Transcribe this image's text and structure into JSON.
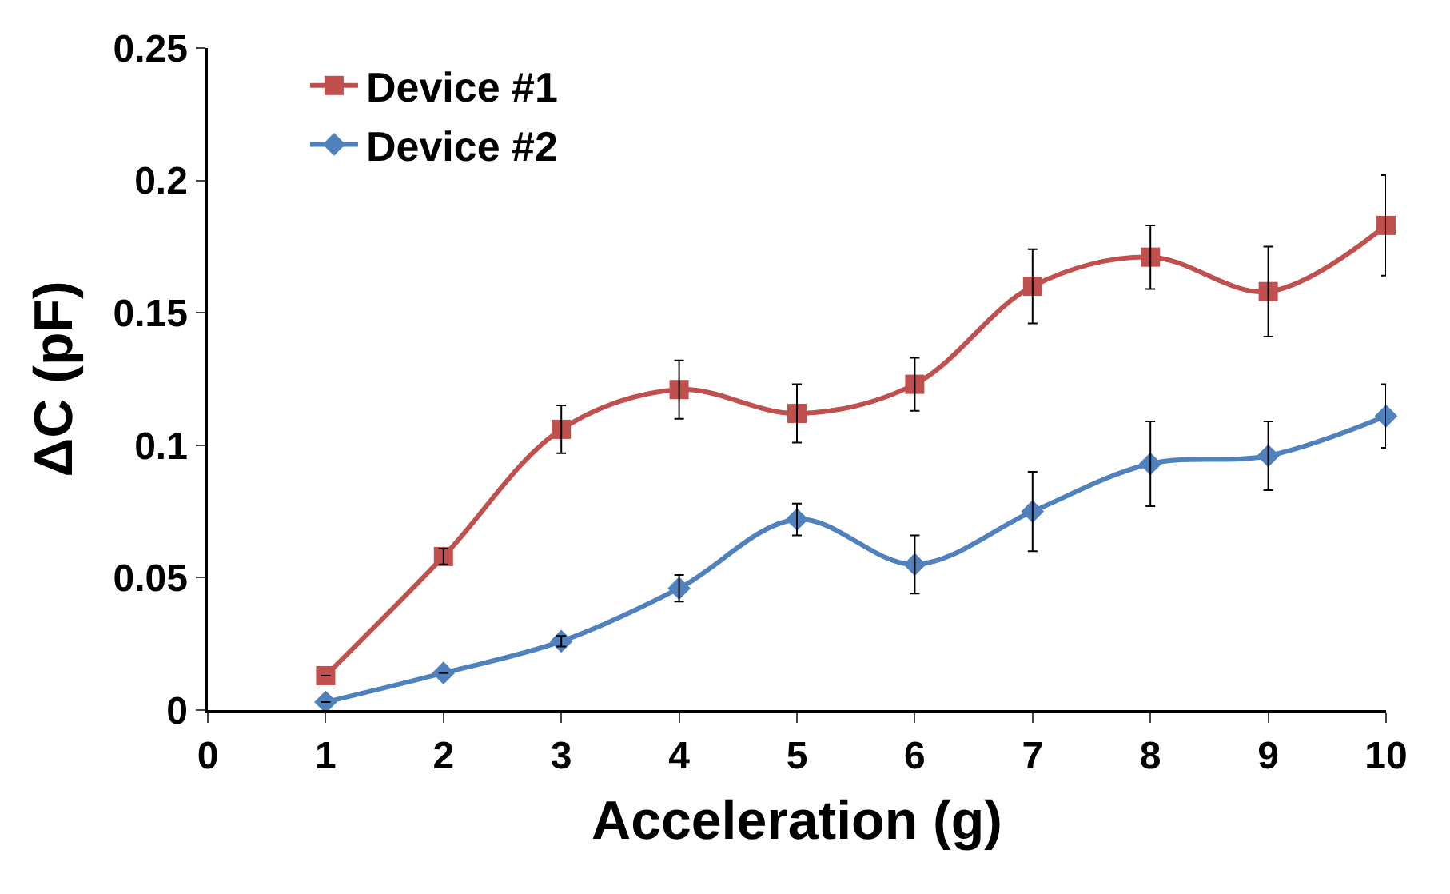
{
  "chart_data": {
    "type": "line",
    "xlabel": "Acceleration (g)",
    "ylabel": "ΔC (pF)",
    "x": [
      1,
      2,
      3,
      4,
      5,
      6,
      7,
      8,
      9,
      10
    ],
    "xlim": [
      0,
      10
    ],
    "xticks": [
      0,
      1,
      2,
      3,
      4,
      5,
      6,
      7,
      8,
      9,
      10
    ],
    "ylim": [
      0,
      0.25
    ],
    "yticks": [
      0,
      0.05,
      0.1,
      0.15,
      0.2,
      0.25
    ],
    "grid": false,
    "legend": "top left",
    "series": [
      {
        "name": "Device #1",
        "color": "#c0504d",
        "marker": "square",
        "values": [
          0.013,
          0.058,
          0.106,
          0.121,
          0.112,
          0.123,
          0.16,
          0.171,
          0.158,
          0.183
        ],
        "errors": [
          null,
          0.003,
          0.009,
          0.011,
          0.011,
          0.01,
          0.014,
          0.012,
          0.017,
          0.019
        ]
      },
      {
        "name": "Device #2",
        "color": "#4f81bd",
        "marker": "diamond",
        "values": [
          0.003,
          0.014,
          0.026,
          0.046,
          0.072,
          0.055,
          0.075,
          0.093,
          0.096,
          0.111
        ],
        "errors": [
          null,
          null,
          0.002,
          0.005,
          0.006,
          0.011,
          0.015,
          0.016,
          0.013,
          0.012
        ]
      }
    ]
  }
}
